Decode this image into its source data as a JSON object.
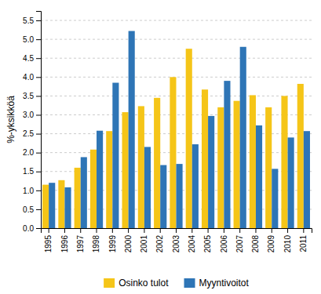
{
  "chart_data": {
    "type": "bar",
    "ylabel": "%-yksikköä",
    "categories": [
      "1995",
      "1996",
      "1997",
      "1998",
      "1999",
      "2000",
      "2001",
      "2002",
      "2003",
      "2004",
      "2005",
      "2006",
      "2007",
      "2008",
      "2009",
      "2010",
      "2011"
    ],
    "series": [
      {
        "name": "Osinko tulot",
        "color": "#F5C518",
        "values": [
          1.15,
          1.27,
          1.6,
          2.08,
          2.57,
          3.07,
          3.23,
          3.45,
          4.0,
          4.75,
          3.67,
          3.2,
          3.37,
          3.52,
          3.2,
          3.5,
          3.82
        ]
      },
      {
        "name": "Myyntivoitot",
        "color": "#2E75B6",
        "values": [
          1.2,
          1.08,
          1.88,
          2.58,
          3.85,
          5.22,
          2.15,
          1.67,
          1.7,
          2.22,
          2.97,
          3.9,
          4.8,
          2.72,
          1.57,
          2.4,
          2.57
        ]
      }
    ],
    "ylim": [
      0.0,
      5.75
    ],
    "yticks": [
      {
        "value": 0.0,
        "label": "0.0"
      },
      0.5,
      {
        "value": 1.0,
        "label": "1.0"
      },
      1.5,
      {
        "value": 2.0,
        "label": "2.0"
      },
      2.5,
      {
        "value": 3.0,
        "label": "3.0"
      },
      3.5,
      {
        "value": 4.0,
        "label": "4.0"
      },
      4.5,
      {
        "value": 5.0,
        "label": "5.0"
      },
      5.5
    ],
    "grid": true,
    "legend": "bottom"
  }
}
